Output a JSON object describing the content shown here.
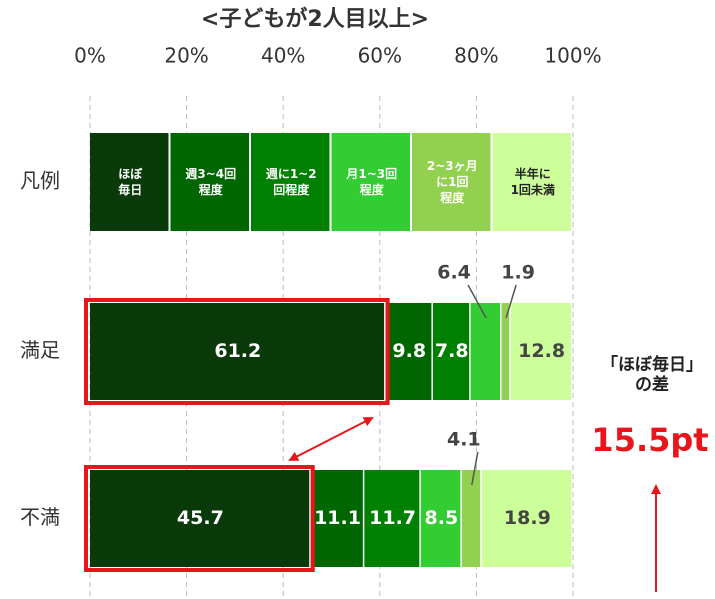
{
  "chart_data": {
    "type": "stacked-bar-horizontal",
    "title": "<子どもが2人目以上>",
    "legend_label": "凡例",
    "categories": [
      "満足",
      "不満"
    ],
    "series": [
      {
        "name": "ほぼ\n毎日",
        "color": "#0a3a0a",
        "values": [
          61.2,
          45.7
        ]
      },
      {
        "name": "週3~4回\n程度",
        "color": "#006600",
        "values": [
          9.8,
          11.1
        ]
      },
      {
        "name": "週に1~2\n回程度",
        "color": "#008000",
        "values": [
          7.8,
          11.7
        ]
      },
      {
        "name": "月1~3回\n程度",
        "color": "#33cc33",
        "values": [
          6.4,
          8.5
        ]
      },
      {
        "name": "2~3ヶ月\nに1回\n程度",
        "color": "#92d050",
        "values": [
          1.9,
          4.1
        ]
      },
      {
        "name": "半年に\n1回未満",
        "color": "#ccff99",
        "values": [
          12.8,
          18.9
        ]
      }
    ],
    "xlim": [
      0,
      100
    ],
    "xticks": [
      {
        "value": 0,
        "label": "0%"
      },
      {
        "value": 20,
        "label": "20%"
      },
      {
        "value": 40,
        "label": "40%"
      },
      {
        "value": 60,
        "label": "60%"
      },
      {
        "value": 80,
        "label": "80%"
      },
      {
        "value": 100,
        "label": "100%"
      }
    ],
    "grid": true,
    "annotations": [
      "「ほぼ毎日」\nの差",
      "15.5pt"
    ]
  }
}
